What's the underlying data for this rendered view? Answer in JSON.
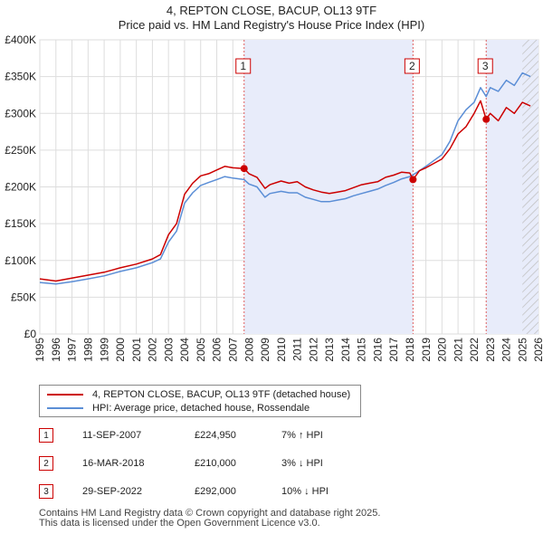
{
  "title": {
    "line1": "4, REPTON CLOSE, BACUP, OL13 9TF",
    "line2": "Price paid vs. HM Land Registry's House Price Index (HPI)"
  },
  "chart_data": {
    "type": "line",
    "title": "4, REPTON CLOSE, BACUP, OL13 9TF — Price paid vs. HM Land Registry's House Price Index (HPI)",
    "xlim": [
      1995,
      2026
    ],
    "ylim": [
      0,
      400000
    ],
    "x_ticks": [
      "1995",
      "1996",
      "1997",
      "1998",
      "1999",
      "2000",
      "2001",
      "2002",
      "2003",
      "2004",
      "2005",
      "2006",
      "2007",
      "2008",
      "2009",
      "2010",
      "2011",
      "2012",
      "2013",
      "2014",
      "2015",
      "2016",
      "2017",
      "2018",
      "2019",
      "2020",
      "2021",
      "2022",
      "2023",
      "2024",
      "2025",
      "2026"
    ],
    "y_ticks": [
      {
        "value": 0,
        "label": "£0"
      },
      {
        "value": 50000,
        "label": "£50K"
      },
      {
        "value": 100000,
        "label": "£100K"
      },
      {
        "value": 150000,
        "label": "£150K"
      },
      {
        "value": 200000,
        "label": "£200K"
      },
      {
        "value": 250000,
        "label": "£250K"
      },
      {
        "value": 300000,
        "label": "£300K"
      },
      {
        "value": 350000,
        "label": "£350K"
      },
      {
        "value": 400000,
        "label": "£400K"
      }
    ],
    "shaded_period": [
      2007.7,
      2018.2
    ],
    "shaded_period_2": [
      2022.75,
      2026
    ],
    "hatched_from": 2025.0,
    "series": [
      {
        "name": "4, REPTON CLOSE, BACUP, OL13 9TF (detached house)",
        "color": "#cc0000",
        "x": [
          1995,
          1996,
          1997,
          1998,
          1999,
          2000,
          2001,
          2002,
          2002.5,
          2003,
          2003.5,
          2004,
          2004.5,
          2005,
          2005.5,
          2006,
          2006.5,
          2007,
          2007.7,
          2008,
          2008.5,
          2009,
          2009.3,
          2010,
          2010.5,
          2011,
          2011.5,
          2012,
          2012.5,
          2013,
          2013.5,
          2014,
          2014.5,
          2015,
          2015.5,
          2016,
          2016.5,
          2017,
          2017.5,
          2018,
          2018.2,
          2018.6,
          2019,
          2019.5,
          2020,
          2020.5,
          2021,
          2021.5,
          2022,
          2022.4,
          2022.75,
          2023,
          2023.5,
          2024,
          2024.5,
          2025,
          2025.5
        ],
        "y": [
          75000,
          72000,
          76000,
          80000,
          84000,
          90000,
          95000,
          102000,
          108000,
          135000,
          150000,
          190000,
          205000,
          215000,
          218000,
          223000,
          228000,
          226000,
          224950,
          218000,
          213000,
          198000,
          203000,
          208000,
          205000,
          207000,
          200000,
          196000,
          193000,
          191000,
          193000,
          195000,
          199000,
          203000,
          205000,
          207000,
          213000,
          216000,
          220000,
          219000,
          210000,
          222000,
          226000,
          232000,
          238000,
          252000,
          272000,
          282000,
          300000,
          317000,
          292000,
          300000,
          290000,
          308000,
          300000,
          315000,
          310000
        ]
      },
      {
        "name": "HPI: Average price, detached house, Rossendale",
        "color": "#5b8ed6",
        "x": [
          1995,
          1996,
          1997,
          1998,
          1999,
          2000,
          2001,
          2002,
          2002.5,
          2003,
          2003.5,
          2004,
          2004.5,
          2005,
          2005.5,
          2006,
          2006.5,
          2007,
          2007.7,
          2008,
          2008.5,
          2009,
          2009.3,
          2010,
          2010.5,
          2011,
          2011.5,
          2012,
          2012.5,
          2013,
          2013.5,
          2014,
          2014.5,
          2015,
          2015.5,
          2016,
          2016.5,
          2017,
          2017.5,
          2018,
          2018.2,
          2018.6,
          2019,
          2019.5,
          2020,
          2020.5,
          2021,
          2021.5,
          2022,
          2022.4,
          2022.75,
          2023,
          2023.5,
          2024,
          2024.5,
          2025,
          2025.5
        ],
        "y": [
          70000,
          68000,
          71000,
          75000,
          79000,
          85000,
          90000,
          97000,
          102000,
          125000,
          140000,
          178000,
          192000,
          202000,
          206000,
          210000,
          214000,
          212000,
          210000,
          204000,
          200000,
          186000,
          191000,
          194000,
          192000,
          192000,
          186000,
          183000,
          180000,
          180000,
          182000,
          184000,
          188000,
          191000,
          194000,
          197000,
          202000,
          206000,
          211000,
          214000,
          216500,
          222000,
          228000,
          236000,
          244000,
          262000,
          290000,
          305000,
          315000,
          335000,
          323000,
          335000,
          330000,
          345000,
          338000,
          355000,
          350000
        ]
      }
    ],
    "sales": [
      {
        "label": "1",
        "x": 2007.7,
        "y": 224950
      },
      {
        "label": "2",
        "x": 2018.2,
        "y": 210000
      },
      {
        "label": "3",
        "x": 2022.75,
        "y": 292000
      }
    ]
  },
  "legend": {
    "items": [
      {
        "label": "4, REPTON CLOSE, BACUP, OL13 9TF (detached house)",
        "color": "#cc0000"
      },
      {
        "label": "HPI: Average price, detached house, Rossendale",
        "color": "#5b8ed6"
      }
    ]
  },
  "sales_table": [
    {
      "num": "1",
      "date": "11-SEP-2007",
      "price": "£224,950",
      "hpi": "7% ↑ HPI"
    },
    {
      "num": "2",
      "date": "16-MAR-2018",
      "price": "£210,000",
      "hpi": "3% ↓ HPI"
    },
    {
      "num": "3",
      "date": "29-SEP-2022",
      "price": "£292,000",
      "hpi": "10% ↓ HPI"
    }
  ],
  "footer": {
    "line1": "Contains HM Land Registry data © Crown copyright and database right 2025.",
    "line2": "This data is licensed under the Open Government Licence v3.0."
  }
}
